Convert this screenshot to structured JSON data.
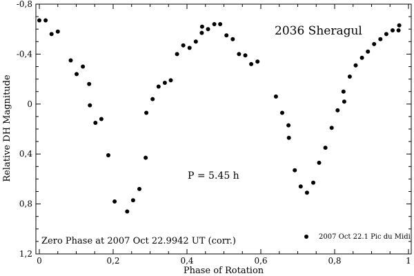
{
  "chart_data": {
    "type": "scatter",
    "title": "2036 Sheragul",
    "xlabel": "Phase of Rotation",
    "ylabel": "Relative DH Magnitude",
    "xlim": [
      0,
      1
    ],
    "ylim": [
      1.2,
      -0.8
    ],
    "y_inverted": true,
    "x_ticks": [
      0,
      0.2,
      0.4,
      0.6,
      0.8,
      1
    ],
    "x_tick_labels": [
      "0",
      "0,2",
      "0,4",
      "0,6",
      "0,8",
      "1"
    ],
    "y_ticks": [
      -0.8,
      -0.4,
      0,
      0.4,
      0.8,
      1.2
    ],
    "y_tick_labels": [
      "-0,8",
      "-0,4",
      "0",
      "0,4",
      "0,8",
      "1,2"
    ],
    "grid": false,
    "legend_position": "bottom-right",
    "annotations": {
      "period": "P = 5.45 h",
      "zero_phase": "Zero Phase at 2007 Oct 22.9942 UT (corr.)"
    },
    "series": [
      {
        "name": "2007 Oct 22.1 Pic du Midi",
        "marker": "circle",
        "color": "#000000",
        "points": [
          [
            0.0,
            -0.67
          ],
          [
            0.017,
            -0.67
          ],
          [
            0.033,
            -0.56
          ],
          [
            0.05,
            -0.58
          ],
          [
            0.085,
            -0.35
          ],
          [
            0.101,
            -0.24
          ],
          [
            0.118,
            -0.3
          ],
          [
            0.135,
            -0.16
          ],
          [
            0.137,
            0.01
          ],
          [
            0.152,
            0.15
          ],
          [
            0.168,
            0.12
          ],
          [
            0.187,
            0.41
          ],
          [
            0.204,
            0.78
          ],
          [
            0.238,
            0.86
          ],
          [
            0.254,
            0.77
          ],
          [
            0.271,
            0.68
          ],
          [
            0.288,
            0.43
          ],
          [
            0.29,
            0.07
          ],
          [
            0.307,
            -0.04
          ],
          [
            0.323,
            -0.14
          ],
          [
            0.34,
            -0.17
          ],
          [
            0.356,
            -0.19
          ],
          [
            0.373,
            -0.4
          ],
          [
            0.39,
            -0.47
          ],
          [
            0.407,
            -0.45
          ],
          [
            0.424,
            -0.5
          ],
          [
            0.44,
            -0.57
          ],
          [
            0.441,
            -0.62
          ],
          [
            0.457,
            -0.6
          ],
          [
            0.474,
            -0.64
          ],
          [
            0.49,
            -0.64
          ],
          [
            0.507,
            -0.55
          ],
          [
            0.524,
            -0.52
          ],
          [
            0.541,
            -0.4
          ],
          [
            0.558,
            -0.39
          ],
          [
            0.574,
            -0.32
          ],
          [
            0.591,
            -0.34
          ],
          [
            0.641,
            -0.06
          ],
          [
            0.658,
            0.07
          ],
          [
            0.675,
            0.17
          ],
          [
            0.676,
            0.27
          ],
          [
            0.692,
            0.53
          ],
          [
            0.708,
            0.66
          ],
          [
            0.725,
            0.71
          ],
          [
            0.742,
            0.63
          ],
          [
            0.758,
            0.47
          ],
          [
            0.775,
            0.35
          ],
          [
            0.792,
            0.19
          ],
          [
            0.808,
            0.05
          ],
          [
            0.824,
            -0.1
          ],
          [
            0.826,
            -0.02
          ],
          [
            0.841,
            -0.22
          ],
          [
            0.857,
            -0.31
          ],
          [
            0.874,
            -0.37
          ],
          [
            0.89,
            -0.42
          ],
          [
            0.907,
            -0.48
          ],
          [
            0.924,
            -0.52
          ],
          [
            0.94,
            -0.56
          ],
          [
            0.957,
            -0.59
          ],
          [
            0.973,
            -0.59
          ],
          [
            0.975,
            -0.63
          ]
        ]
      }
    ]
  }
}
